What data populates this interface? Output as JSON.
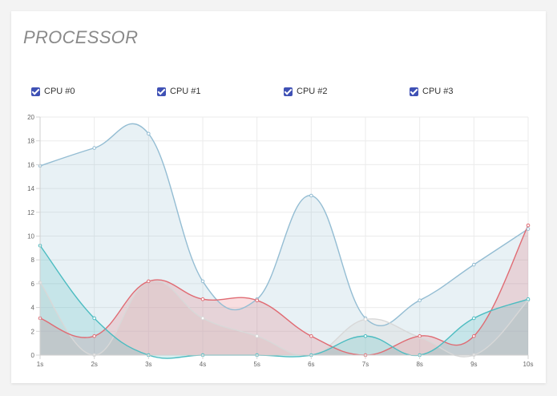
{
  "card": {
    "title": "PROCESSOR"
  },
  "legend": {
    "checkbox_color": "#3f51b5",
    "items": [
      {
        "label": "CPU #0",
        "checked": true
      },
      {
        "label": "CPU #1",
        "checked": true
      },
      {
        "label": "CPU #2",
        "checked": true
      },
      {
        "label": "CPU #3",
        "checked": true
      }
    ]
  },
  "chart_data": {
    "type": "area",
    "title": "PROCESSOR",
    "xlabel": "",
    "ylabel": "",
    "categories": [
      "1s",
      "2s",
      "3s",
      "4s",
      "5s",
      "6s",
      "7s",
      "8s",
      "9s",
      "10s"
    ],
    "ylim": [
      0,
      20
    ],
    "yticks": [
      0,
      2,
      4,
      6,
      8,
      10,
      12,
      14,
      16,
      18,
      20
    ],
    "grid": true,
    "legend_position": "top",
    "series": [
      {
        "name": "CPU #0",
        "color": "#4cbcc1",
        "values": [
          9.2,
          3.1,
          0,
          0,
          0,
          0,
          1.6,
          0,
          3.1,
          4.7
        ]
      },
      {
        "name": "CPU #1",
        "color": "#94bdd3",
        "values": [
          15.9,
          17.4,
          18.6,
          6.2,
          4.7,
          13.4,
          3.1,
          4.6,
          7.6,
          10.6
        ]
      },
      {
        "name": "CPU #2",
        "color": "#e06b73",
        "values": [
          3.1,
          1.6,
          6.2,
          4.7,
          4.6,
          1.6,
          0,
          1.6,
          1.6,
          10.9
        ]
      },
      {
        "name": "CPU #3",
        "color": "#d8d8d8",
        "values": [
          6.1,
          0,
          6.2,
          3.1,
          1.6,
          0,
          3.0,
          1.5,
          0,
          4.6
        ]
      }
    ]
  }
}
